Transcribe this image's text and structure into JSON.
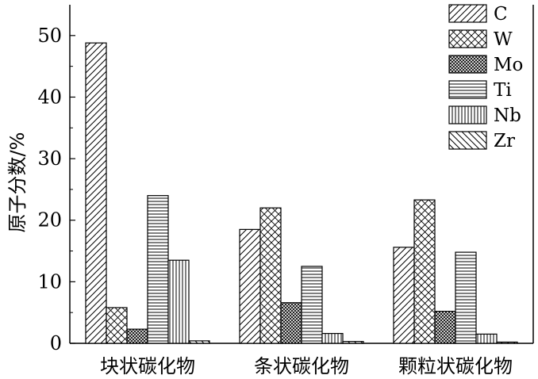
{
  "chart_data": {
    "type": "bar",
    "ylabel": "原子分数/%",
    "xlabel": "",
    "ylim": [
      0,
      55
    ],
    "yticks": [
      "0",
      "10",
      "20",
      "30",
      "40",
      "50"
    ],
    "categories": [
      "块状碳化物",
      "条状碳化物",
      "颗粒状碳化物"
    ],
    "series": [
      {
        "name": "C",
        "values": [
          48.8,
          18.5,
          15.6
        ],
        "pattern": "diag-right"
      },
      {
        "name": "W",
        "values": [
          5.8,
          22.0,
          23.3
        ],
        "pattern": "crosshatch"
      },
      {
        "name": "Mo",
        "values": [
          2.3,
          6.6,
          5.2
        ],
        "pattern": "dense-cross"
      },
      {
        "name": "Ti",
        "values": [
          24.0,
          12.5,
          14.8
        ],
        "pattern": "horizontal"
      },
      {
        "name": "Nb",
        "values": [
          13.5,
          1.6,
          1.5
        ],
        "pattern": "vertical"
      },
      {
        "name": "Zr",
        "values": [
          0.4,
          0.3,
          0.2
        ],
        "pattern": "diag-left"
      }
    ],
    "legend_position": "top-right",
    "grid": false,
    "bar_color": "#000000",
    "background": "#ffffff"
  }
}
